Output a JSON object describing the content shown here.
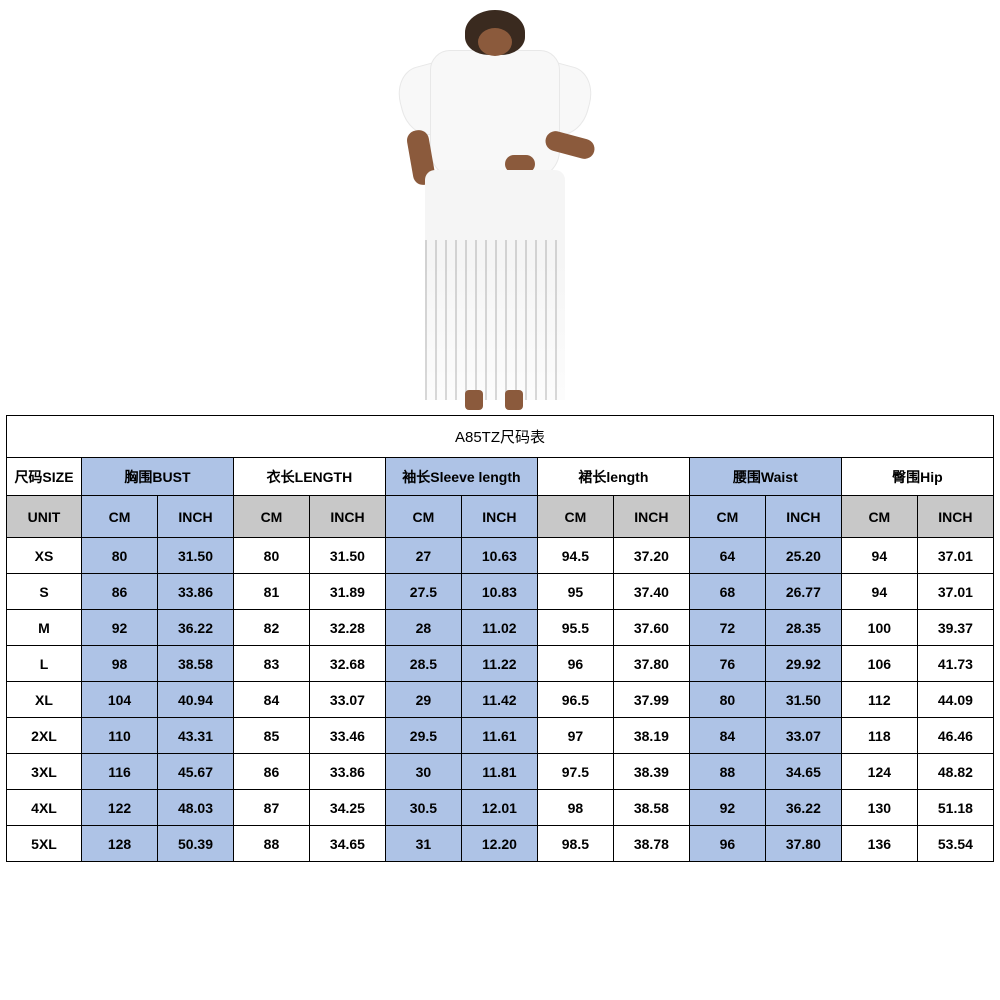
{
  "colors": {
    "highlight": "#aec3e6",
    "gray": "#c8c8c8",
    "white": "#ffffff",
    "border": "#000000",
    "text": "#000000"
  },
  "table": {
    "title": "A85TZ尺码表",
    "size_header": "尺码SIZE",
    "unit_label": "UNIT",
    "columns": [
      {
        "label": "胸围BUST",
        "highlight": true
      },
      {
        "label": "衣长LENGTH",
        "highlight": false
      },
      {
        "label": "袖长Sleeve length",
        "highlight": true
      },
      {
        "label": "裙长length",
        "highlight": false
      },
      {
        "label": "腰围Waist",
        "highlight": true
      },
      {
        "label": "臀围Hip",
        "highlight": false
      }
    ],
    "sub_headers": [
      "CM",
      "INCH"
    ],
    "rows": [
      {
        "size": "XS",
        "vals": [
          "80",
          "31.50",
          "80",
          "31.50",
          "27",
          "10.63",
          "94.5",
          "37.20",
          "64",
          "25.20",
          "94",
          "37.01"
        ]
      },
      {
        "size": "S",
        "vals": [
          "86",
          "33.86",
          "81",
          "31.89",
          "27.5",
          "10.83",
          "95",
          "37.40",
          "68",
          "26.77",
          "94",
          "37.01"
        ]
      },
      {
        "size": "M",
        "vals": [
          "92",
          "36.22",
          "82",
          "32.28",
          "28",
          "11.02",
          "95.5",
          "37.60",
          "72",
          "28.35",
          "100",
          "39.37"
        ]
      },
      {
        "size": "L",
        "vals": [
          "98",
          "38.58",
          "83",
          "32.68",
          "28.5",
          "11.22",
          "96",
          "37.80",
          "76",
          "29.92",
          "106",
          "41.73"
        ]
      },
      {
        "size": "XL",
        "vals": [
          "104",
          "40.94",
          "84",
          "33.07",
          "29",
          "11.42",
          "96.5",
          "37.99",
          "80",
          "31.50",
          "112",
          "44.09"
        ]
      },
      {
        "size": "2XL",
        "vals": [
          "110",
          "43.31",
          "85",
          "33.46",
          "29.5",
          "11.61",
          "97",
          "38.19",
          "84",
          "33.07",
          "118",
          "46.46"
        ]
      },
      {
        "size": "3XL",
        "vals": [
          "116",
          "45.67",
          "86",
          "33.86",
          "30",
          "11.81",
          "97.5",
          "38.39",
          "88",
          "34.65",
          "124",
          "48.82"
        ]
      },
      {
        "size": "4XL",
        "vals": [
          "122",
          "48.03",
          "87",
          "34.25",
          "30.5",
          "12.01",
          "98",
          "38.58",
          "92",
          "36.22",
          "130",
          "51.18"
        ]
      },
      {
        "size": "5XL",
        "vals": [
          "128",
          "50.39",
          "88",
          "34.65",
          "31",
          "12.20",
          "98.5",
          "38.78",
          "96",
          "37.80",
          "136",
          "53.54"
        ]
      }
    ]
  }
}
